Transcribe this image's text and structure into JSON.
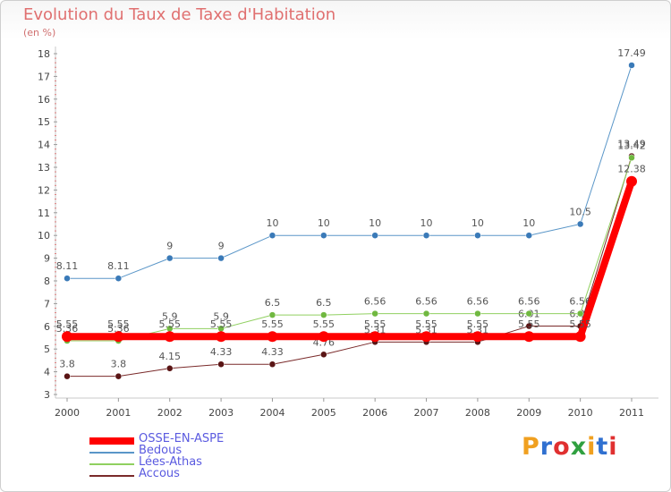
{
  "title": "Evolution du Taux de Taxe d'Habitation",
  "subtitle": "(en %)",
  "logo": {
    "text": "Proxiti",
    "colors": [
      "#f0a020",
      "#3070d0",
      "#e03030",
      "#30a040",
      "#f0a020",
      "#3070d0",
      "#e03030"
    ]
  },
  "chart_data": {
    "type": "line",
    "x": [
      "2000",
      "2001",
      "2002",
      "2003",
      "2004",
      "2005",
      "2006",
      "2007",
      "2008",
      "2009",
      "2010",
      "2011"
    ],
    "ylim": [
      3,
      18
    ],
    "yticks": [
      "3",
      "4",
      "5",
      "6",
      "7",
      "8",
      "9",
      "10",
      "11",
      "12",
      "13",
      "14",
      "15",
      "16",
      "17",
      "18"
    ],
    "grid": false,
    "legend_position": "bottom-left",
    "series": [
      {
        "name": "Accous",
        "color": "#7a2a2a",
        "marker": "#5a1515",
        "width": 1,
        "values": [
          3.8,
          3.8,
          4.15,
          4.33,
          4.33,
          4.76,
          5.31,
          5.31,
          5.31,
          6.01,
          6.01,
          13.49
        ],
        "labels": [
          "3.8",
          "3.8",
          "4.15",
          "4.33",
          "4.33",
          "4.76",
          "5.31",
          "5.31",
          "5.31",
          "6.01",
          "6.01",
          "13.49"
        ]
      },
      {
        "name": "Lées-Athas",
        "color": "#90d060",
        "marker": "#70b840",
        "width": 1,
        "values": [
          5.36,
          5.36,
          5.9,
          5.9,
          6.5,
          6.5,
          6.56,
          6.56,
          6.56,
          6.56,
          6.56,
          13.42
        ],
        "labels": [
          "5.36",
          "5.36",
          "5.9",
          "5.9",
          "6.5",
          "6.5",
          "6.56",
          "6.56",
          "6.56",
          "6.56",
          "6.56",
          "13.42"
        ]
      },
      {
        "name": "Bedous",
        "color": "#5a96c8",
        "marker": "#3a7ab8",
        "width": 1,
        "values": [
          8.11,
          8.11,
          9,
          9,
          10,
          10,
          10,
          10,
          10,
          10,
          10.5,
          17.49
        ],
        "labels": [
          "8.11",
          "8.11",
          "9",
          "9",
          "10",
          "10",
          "10",
          "10",
          "10",
          "10",
          "10.5",
          "17.49"
        ]
      },
      {
        "name": "OSSE-EN-ASPE",
        "color": "#ff0000",
        "marker": "#ff0000",
        "width": 8,
        "values": [
          5.55,
          5.55,
          5.55,
          5.55,
          5.55,
          5.55,
          5.55,
          5.55,
          5.55,
          5.55,
          5.55,
          12.38
        ],
        "labels": [
          "5.55",
          "5.55",
          "5.55",
          "5.55",
          "5.55",
          "5.55",
          "5.55",
          "5.55",
          "5.55",
          "5.55",
          "5.55",
          "12.38"
        ]
      }
    ],
    "legend_order": [
      "OSSE-EN-ASPE",
      "Bedous",
      "Lées-Athas",
      "Accous"
    ]
  }
}
